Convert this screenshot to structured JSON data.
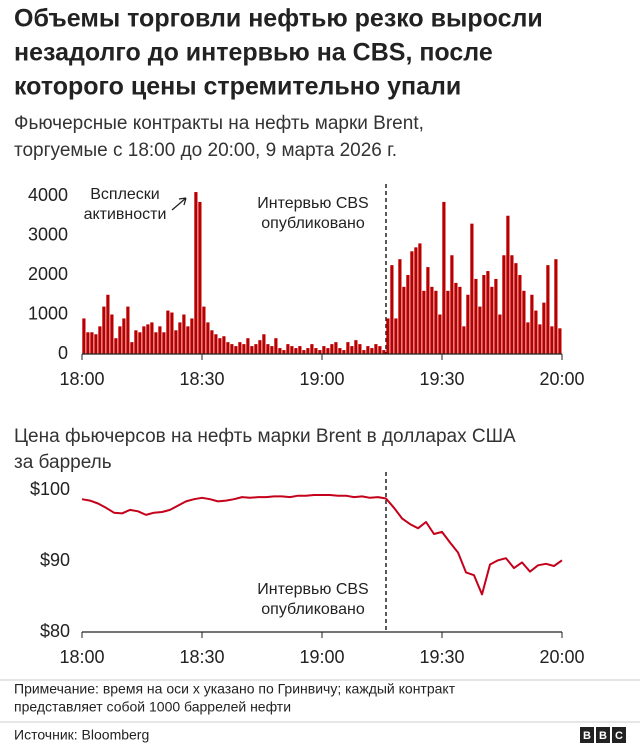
{
  "title": [
    "Объемы торговли нефтью резко выросли",
    "незадолго до интервью на CBS, после",
    "которого цены стремительно упали"
  ],
  "subtitle": [
    "Фьючерсные контракты на нефть марки Brent,",
    "торгуемые с 18:00 до 20:00, 9 марта 2026 г."
  ],
  "chart_data": [
    {
      "type": "bar",
      "color": "#b80000",
      "x": [
        0,
        1,
        2,
        3,
        4,
        5,
        6,
        7,
        8,
        9,
        10,
        11,
        12,
        13,
        14,
        15,
        16,
        17,
        18,
        19,
        20,
        21,
        22,
        23,
        24,
        25,
        26,
        27,
        28,
        29,
        30,
        31,
        32,
        33,
        34,
        35,
        36,
        37,
        38,
        39,
        40,
        41,
        42,
        43,
        44,
        45,
        46,
        47,
        48,
        49,
        50,
        51,
        52,
        53,
        54,
        55,
        56,
        57,
        58,
        59,
        60,
        61,
        62,
        63,
        64,
        65,
        66,
        67,
        68,
        69,
        70,
        71,
        72,
        73,
        74,
        75,
        76,
        77,
        78,
        79,
        80,
        81,
        82,
        83,
        84,
        85,
        86,
        87,
        88,
        89,
        90,
        91,
        92,
        93,
        94,
        95,
        96,
        97,
        98,
        99,
        100,
        101,
        102,
        103,
        104,
        105,
        106,
        107,
        108,
        109,
        110,
        111,
        112,
        113,
        114,
        115,
        116,
        117,
        118,
        119
      ],
      "values": [
        900,
        550,
        550,
        500,
        700,
        1200,
        1500,
        1000,
        400,
        700,
        900,
        1200,
        300,
        600,
        550,
        700,
        750,
        800,
        550,
        700,
        550,
        1100,
        1050,
        600,
        800,
        1000,
        700,
        900,
        4100,
        3850,
        1200,
        800,
        600,
        500,
        400,
        450,
        300,
        250,
        200,
        300,
        250,
        400,
        200,
        250,
        350,
        500,
        250,
        200,
        400,
        150,
        100,
        250,
        200,
        150,
        200,
        100,
        150,
        250,
        150,
        100,
        200,
        150,
        250,
        300,
        150,
        100,
        300,
        200,
        350,
        250,
        100,
        200,
        150,
        250,
        200,
        100,
        900,
        2250,
        900,
        2400,
        1700,
        2000,
        2600,
        2700,
        2800,
        1600,
        2200,
        1700,
        1600,
        1000,
        3850,
        1600,
        2500,
        1800,
        1700,
        700,
        1500,
        3300,
        1900,
        1200,
        2000,
        2100,
        1700,
        1900,
        1000,
        2500,
        3500,
        2500,
        2300,
        2000,
        1600,
        800,
        1500,
        1100,
        750,
        1300,
        2250,
        700,
        2400,
        650
      ],
      "xlim": [
        0,
        120
      ],
      "xticks": [
        {
          "value": 0,
          "label": "18:00"
        },
        {
          "value": 30,
          "label": "18:30"
        },
        {
          "value": 60,
          "label": "19:00"
        },
        {
          "value": 90,
          "label": "19:30"
        },
        {
          "value": 120,
          "label": "20:00"
        }
      ],
      "ylim": [
        0,
        4000
      ],
      "yticks": [
        0,
        1000,
        2000,
        3000,
        4000
      ],
      "annotations": [
        [
          "Всплески",
          "активности"
        ],
        [
          "Интервью CBS",
          "опубликовано"
        ]
      ]
    },
    {
      "type": "line",
      "title": [
        "Цена фьючерсов на нефть марки Brent в долларах США",
        "за баррель"
      ],
      "color": "#c4001a",
      "x": [
        0,
        2,
        4,
        6,
        8,
        10,
        12,
        14,
        16,
        18,
        20,
        22,
        24,
        26,
        28,
        30,
        32,
        34,
        36,
        38,
        40,
        42,
        44,
        46,
        48,
        50,
        52,
        54,
        56,
        58,
        60,
        62,
        64,
        66,
        68,
        70,
        72,
        74,
        76,
        78,
        80,
        82,
        84,
        86,
        88,
        90,
        92,
        94,
        96,
        98,
        100,
        102,
        104,
        106,
        108,
        110,
        112,
        114,
        116,
        118,
        120
      ],
      "values": [
        98.7,
        98.5,
        98.1,
        97.5,
        96.8,
        96.7,
        97.2,
        97.0,
        96.5,
        96.8,
        96.9,
        97.2,
        97.8,
        98.4,
        98.7,
        98.9,
        98.7,
        98.4,
        98.5,
        98.7,
        99.0,
        98.9,
        99.0,
        99.0,
        99.1,
        99.1,
        99.0,
        99.2,
        99.2,
        99.3,
        99.3,
        99.3,
        99.2,
        99.2,
        99.0,
        99.1,
        98.9,
        99.0,
        98.8,
        97.5,
        96.0,
        95.2,
        94.6,
        95.5,
        93.8,
        94.1,
        92.6,
        91.2,
        88.4,
        88.0,
        85.3,
        89.5,
        90.1,
        90.4,
        89.0,
        89.8,
        88.5,
        89.4,
        89.6,
        89.3,
        90.1
      ],
      "xlim": [
        0,
        120
      ],
      "xticks": [
        {
          "value": 0,
          "label": "18:00"
        },
        {
          "value": 30,
          "label": "18:30"
        },
        {
          "value": 60,
          "label": "19:00"
        },
        {
          "value": 90,
          "label": "19:30"
        },
        {
          "value": 120,
          "label": "20:00"
        }
      ],
      "ylim": [
        80,
        100
      ],
      "yticks": [
        {
          "value": 80,
          "label": "$80"
        },
        {
          "value": 90,
          "label": "$90"
        },
        {
          "value": 100,
          "label": "$100"
        }
      ],
      "annotations": [
        [
          "Интервью CBS",
          "опубликовано"
        ]
      ]
    }
  ],
  "note": [
    "Примечание: время на оси x указано по Гринвичу; каждый контракт",
    "представляет собой 1000 баррелей нефти"
  ],
  "source": "Источник: Bloomberg",
  "logo": [
    "B",
    "B",
    "C"
  ]
}
